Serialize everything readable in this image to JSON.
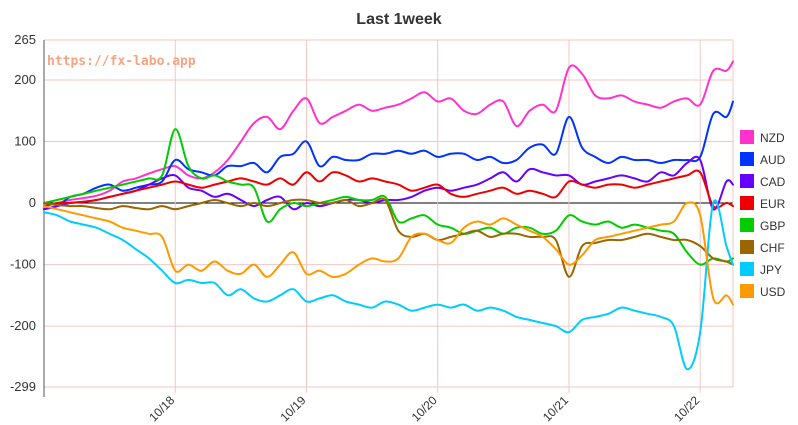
{
  "chart_data": {
    "type": "line",
    "title": "Last 1week",
    "watermark": "https://fx-labo.app",
    "watermark_color": "#f4a582",
    "ylim": [
      -299,
      265
    ],
    "yticks": [
      265,
      200,
      100,
      0,
      -100,
      -200,
      -299
    ],
    "x_ticks": [
      {
        "x": 3,
        "label": "10/18"
      },
      {
        "x": 5,
        "label": "10/19"
      },
      {
        "x": 7,
        "label": "10/20"
      },
      {
        "x": 9,
        "label": "10/21"
      },
      {
        "x": 11,
        "label": "10/22"
      }
    ],
    "xlim": [
      1.0,
      11.5
    ],
    "grid": true,
    "legend_position": "right",
    "x": [
      1.0,
      1.2,
      1.4,
      1.6,
      1.8,
      2.0,
      2.2,
      2.4,
      2.6,
      2.8,
      3.0,
      3.2,
      3.4,
      3.6,
      3.8,
      4.0,
      4.2,
      4.4,
      4.6,
      4.8,
      5.0,
      5.2,
      5.4,
      5.6,
      5.8,
      6.0,
      6.2,
      6.4,
      6.6,
      6.8,
      7.0,
      7.2,
      7.4,
      7.6,
      7.8,
      8.0,
      8.2,
      8.4,
      8.6,
      8.8,
      9.0,
      9.2,
      9.4,
      9.6,
      9.8,
      10.0,
      10.2,
      10.4,
      10.6,
      10.8,
      11.0,
      11.2,
      11.4,
      11.5
    ],
    "series": [
      {
        "name": "NZD",
        "color": "#ff33cc",
        "values": [
          -5,
          0,
          5,
          8,
          12,
          20,
          35,
          40,
          48,
          55,
          60,
          45,
          40,
          50,
          70,
          100,
          130,
          140,
          120,
          150,
          170,
          130,
          140,
          150,
          160,
          150,
          155,
          160,
          170,
          180,
          165,
          170,
          150,
          145,
          160,
          165,
          125,
          150,
          160,
          150,
          220,
          210,
          175,
          170,
          175,
          165,
          160,
          155,
          165,
          170,
          160,
          215,
          215,
          230
        ]
      },
      {
        "name": "AUD",
        "color": "#0033ff",
        "values": [
          -10,
          -5,
          10,
          15,
          25,
          30,
          20,
          25,
          30,
          35,
          70,
          55,
          50,
          45,
          60,
          60,
          65,
          50,
          75,
          80,
          100,
          60,
          75,
          70,
          70,
          80,
          80,
          85,
          80,
          85,
          75,
          80,
          80,
          70,
          75,
          65,
          70,
          90,
          95,
          80,
          140,
          90,
          75,
          65,
          75,
          70,
          70,
          65,
          70,
          70,
          75,
          145,
          140,
          165
        ]
      },
      {
        "name": "CAD",
        "color": "#6600ff",
        "values": [
          -10,
          -5,
          0,
          2,
          5,
          10,
          15,
          20,
          30,
          40,
          45,
          25,
          20,
          10,
          15,
          5,
          -5,
          5,
          10,
          -10,
          0,
          -5,
          0,
          5,
          5,
          0,
          5,
          5,
          10,
          20,
          25,
          20,
          25,
          30,
          40,
          50,
          35,
          55,
          50,
          45,
          45,
          30,
          35,
          40,
          45,
          40,
          35,
          50,
          45,
          65,
          70,
          -10,
          35,
          30
        ]
      },
      {
        "name": "EUR",
        "color": "#ee0000",
        "values": [
          -5,
          0,
          0,
          2,
          5,
          10,
          15,
          20,
          25,
          30,
          35,
          30,
          25,
          30,
          35,
          40,
          35,
          30,
          40,
          30,
          50,
          35,
          50,
          45,
          35,
          40,
          35,
          30,
          20,
          25,
          30,
          15,
          10,
          15,
          20,
          25,
          15,
          20,
          15,
          10,
          35,
          30,
          25,
          30,
          30,
          25,
          30,
          35,
          40,
          45,
          50,
          -5,
          0,
          -5
        ]
      },
      {
        "name": "GBP",
        "color": "#00cc00",
        "values": [
          0,
          5,
          10,
          15,
          20,
          25,
          30,
          35,
          40,
          45,
          120,
          60,
          40,
          45,
          35,
          30,
          25,
          -30,
          -10,
          0,
          -5,
          0,
          5,
          10,
          5,
          5,
          10,
          -30,
          -25,
          -20,
          -35,
          -40,
          -50,
          -45,
          -40,
          -50,
          -40,
          -40,
          -50,
          -45,
          -20,
          -30,
          -35,
          -30,
          -40,
          -35,
          -40,
          -45,
          -50,
          -80,
          -100,
          -90,
          -95,
          -90
        ]
      },
      {
        "name": "CHF",
        "color": "#996600",
        "values": [
          0,
          -3,
          -5,
          -5,
          -8,
          -10,
          -5,
          -8,
          -10,
          -5,
          -10,
          -5,
          0,
          5,
          0,
          -5,
          0,
          -5,
          0,
          5,
          5,
          0,
          0,
          5,
          -5,
          0,
          5,
          -45,
          -55,
          -50,
          -60,
          -55,
          -50,
          -45,
          -55,
          -50,
          -50,
          -55,
          -55,
          -60,
          -120,
          -70,
          -65,
          -60,
          -60,
          -55,
          -50,
          -55,
          -60,
          -60,
          -70,
          -90,
          -95,
          -100
        ]
      },
      {
        "name": "JPY",
        "color": "#00ccff",
        "values": [
          -15,
          -20,
          -30,
          -35,
          -40,
          -50,
          -60,
          -75,
          -90,
          -110,
          -130,
          -125,
          -130,
          -130,
          -150,
          -140,
          -155,
          -160,
          -150,
          -140,
          -160,
          -155,
          -150,
          -160,
          -165,
          -170,
          -160,
          -165,
          -175,
          -170,
          -165,
          -170,
          -165,
          -175,
          -170,
          -175,
          -185,
          -190,
          -195,
          -200,
          -210,
          -190,
          -185,
          -180,
          -170,
          -175,
          -180,
          -185,
          -200,
          -270,
          -210,
          0,
          -70,
          -100
        ]
      },
      {
        "name": "USD",
        "color": "#ff9900",
        "values": [
          -5,
          -10,
          -15,
          -20,
          -25,
          -30,
          -40,
          -45,
          -50,
          -55,
          -110,
          -100,
          -110,
          -95,
          -110,
          -115,
          -100,
          -120,
          -100,
          -80,
          -115,
          -110,
          -120,
          -115,
          -100,
          -90,
          -95,
          -90,
          -55,
          -50,
          -60,
          -65,
          -40,
          -30,
          -35,
          -25,
          -35,
          -45,
          -55,
          -75,
          -100,
          -85,
          -60,
          -55,
          -50,
          -45,
          -40,
          -35,
          -30,
          0,
          -20,
          -155,
          -150,
          -165
        ]
      }
    ]
  }
}
